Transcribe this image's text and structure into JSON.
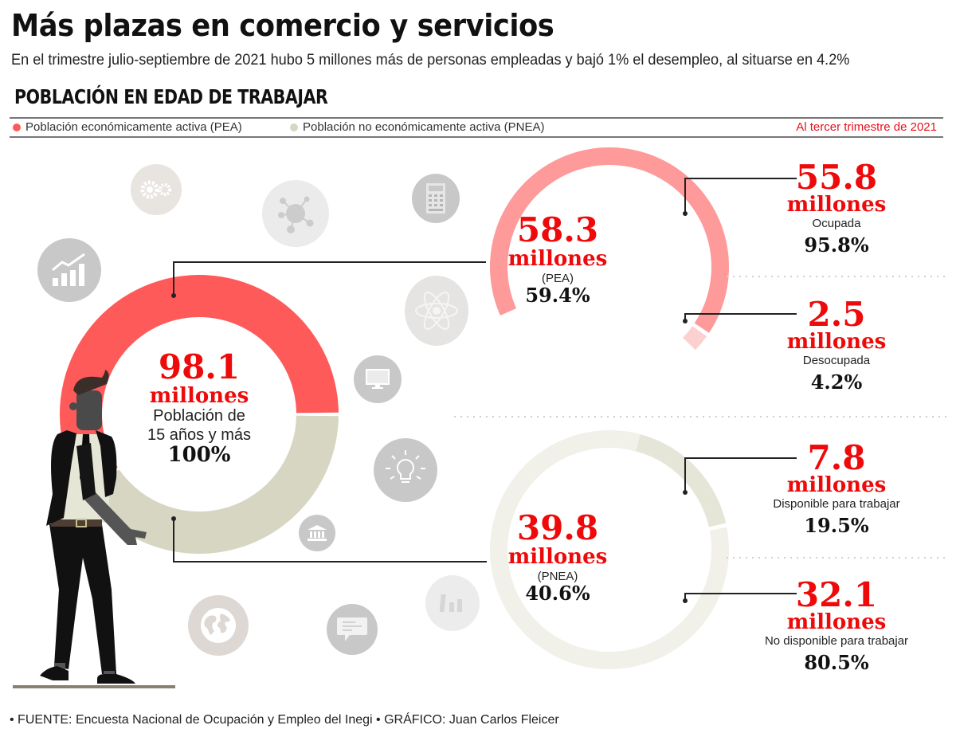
{
  "header": {
    "title": "Más plazas en comercio y servicios",
    "subtitle": "En el trimestre julio-septiembre de 2021 hubo 5 millones más de personas empleadas  y bajó 1% el desempleo, al situarse en 4.2%",
    "section_title": "POBLACIÓN EN EDAD DE TRABAJAR"
  },
  "legend": {
    "items": [
      {
        "label": "Población económicamente activa (PEA)",
        "color": "#fe5a5a"
      },
      {
        "label": "Población no económicamente activa (PNEA)",
        "color": "#d6d6c2"
      }
    ],
    "period": "Al tercer trimestre de 2021"
  },
  "chart_data": [
    {
      "type": "pie",
      "name": "total",
      "title": "Población de 15 años y más",
      "center_value": "98.1",
      "center_unit": "millones",
      "center_label_line1": "Población de",
      "center_label_line2": "15 años y más",
      "center_pct": "100%",
      "slices": [
        {
          "label": "PEA",
          "value": 58.3,
          "percent": 59.4,
          "color": "#fe5a5a"
        },
        {
          "label": "PNEA",
          "value": 39.8,
          "percent": 40.6,
          "color": "#d6d6c2"
        }
      ]
    },
    {
      "type": "pie",
      "name": "pea",
      "center_value": "58.3",
      "center_unit": "millones",
      "center_label": "(PEA)",
      "center_pct": "59.4%",
      "slices": [
        {
          "label": "Ocupada",
          "value": 55.8,
          "percent": 95.8,
          "color": "#fe9a9a"
        },
        {
          "label": "Desocupada",
          "value": 2.5,
          "percent": 4.2,
          "color": "#fdd0d0"
        }
      ]
    },
    {
      "type": "pie",
      "name": "pnea",
      "center_value": "39.8",
      "center_unit": "millones",
      "center_label": "(PNEA)",
      "center_pct": "40.6%",
      "slices": [
        {
          "label": "Disponible para trabajar",
          "value": 7.8,
          "percent": 19.5,
          "color": "#e6e6d8"
        },
        {
          "label": "No disponible para trabajar",
          "value": 32.1,
          "percent": 80.5,
          "color": "#f1f1e9"
        }
      ]
    }
  ],
  "callouts": [
    {
      "value": "55.8",
      "unit": "millones",
      "label": "Ocupada",
      "pct": "95.8%"
    },
    {
      "value": "2.5",
      "unit": "millones",
      "label": "Desocupada",
      "pct": "4.2%"
    },
    {
      "value": "7.8",
      "unit": "millones",
      "label": "Disponible para trabajar",
      "pct": "19.5%"
    },
    {
      "value": "32.1",
      "unit": "millones",
      "label": "No disponible para trabajar",
      "pct": "80.5%"
    }
  ],
  "icons": [
    "gears-icon",
    "network-icon",
    "calculator-icon",
    "growth-chart-icon",
    "atom-icon",
    "monitor-icon",
    "lightbulb-icon",
    "bank-icon",
    "globe-icon",
    "chat-icon",
    "bar-chart-icon"
  ],
  "footer": "• FUENTE: Encuesta Nacional de Ocupación y Empleo del Inegi • GRÁFICO: Juan Carlos Fleicer"
}
